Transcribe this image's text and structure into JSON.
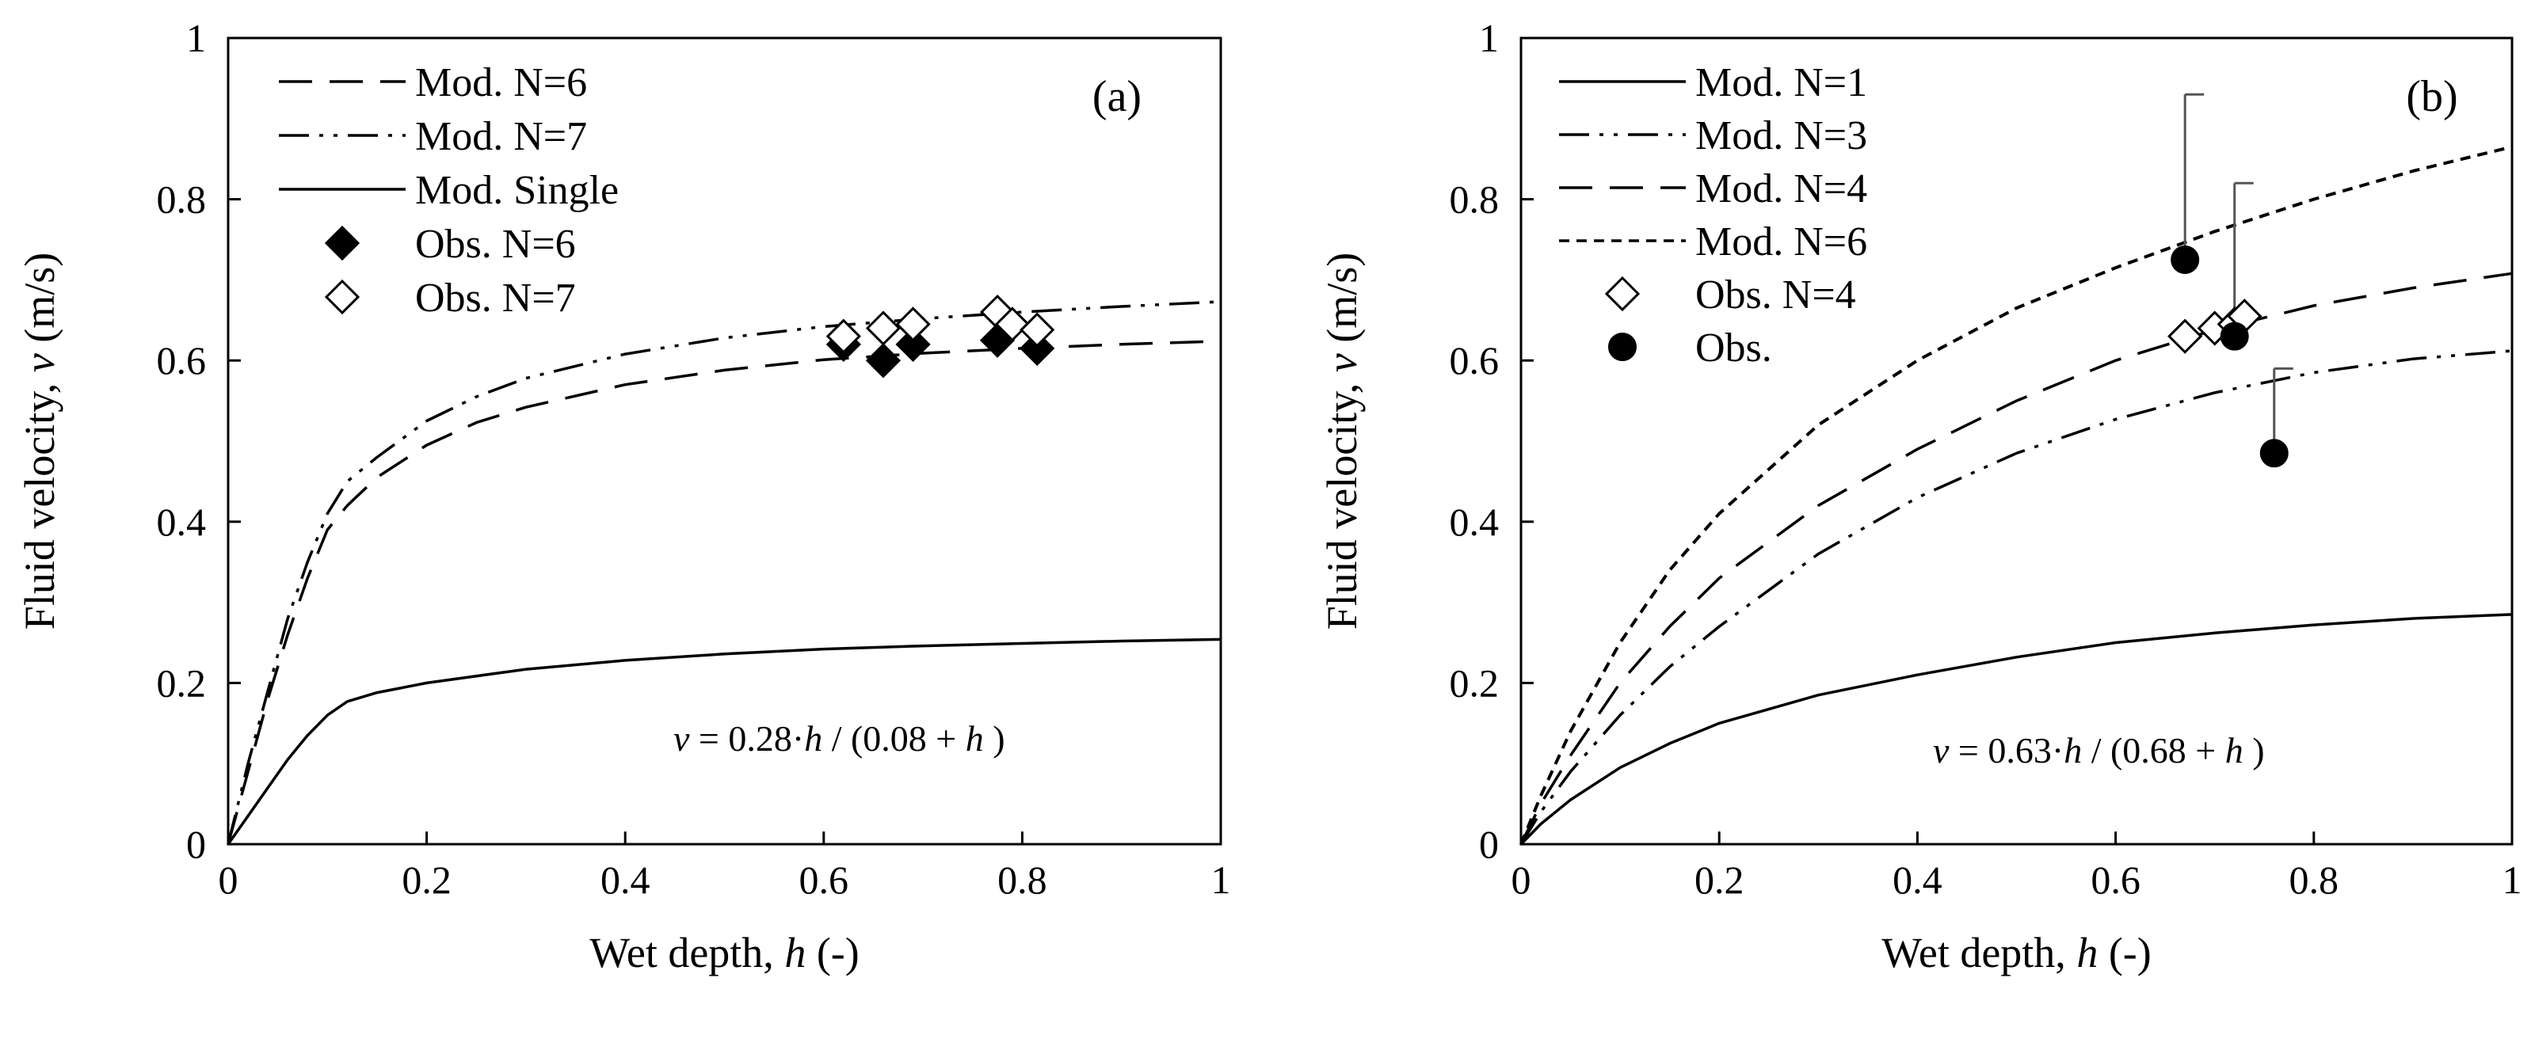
{
  "chart_data": [
    {
      "type": "line",
      "panel_label": "(a)",
      "xlabel_prefix": "Wet depth, ",
      "xlabel_var": "h",
      "xlabel_suffix": " (-)",
      "ylabel_prefix": "Fluid velocity, ",
      "ylabel_var": "v",
      "ylabel_suffix": " (m/s)",
      "xlim": [
        0,
        1
      ],
      "ylim": [
        0,
        1
      ],
      "xticks": [
        0,
        0.2,
        0.4,
        0.6,
        0.8,
        1
      ],
      "xtick_labels": [
        "0",
        "0.2",
        "0.4",
        "0.6",
        "0.8",
        "1"
      ],
      "yticks": [
        0,
        0.2,
        0.4,
        0.6,
        0.8,
        1
      ],
      "ytick_labels": [
        "0",
        "0.2",
        "0.4",
        "0.6",
        "0.8",
        "1"
      ],
      "grid": false,
      "legend_position": "top-left",
      "equation": {
        "v": "v",
        "eq": " = 0.28·",
        "h1": "h",
        "mid": " / (0.08 + ",
        "h2": "h",
        "end": " )"
      },
      "series": [
        {
          "name": "Mod. N=6",
          "style": "dashed",
          "x": [
            0,
            0.02,
            0.04,
            0.06,
            0.08,
            0.1,
            0.12,
            0.15,
            0.2,
            0.25,
            0.3,
            0.4,
            0.5,
            0.6,
            0.7,
            0.8,
            0.9,
            1.0
          ],
          "y": [
            0,
            0.09,
            0.18,
            0.26,
            0.33,
            0.39,
            0.42,
            0.455,
            0.495,
            0.523,
            0.542,
            0.57,
            0.588,
            0.601,
            0.609,
            0.615,
            0.62,
            0.624
          ]
        },
        {
          "name": "Mod. N=7",
          "style": "dash-dot-dot",
          "x": [
            0,
            0.02,
            0.04,
            0.06,
            0.08,
            0.1,
            0.12,
            0.15,
            0.2,
            0.25,
            0.3,
            0.4,
            0.5,
            0.6,
            0.7,
            0.8,
            0.9,
            1.0
          ],
          "y": [
            0,
            0.1,
            0.19,
            0.28,
            0.35,
            0.41,
            0.45,
            0.48,
            0.525,
            0.555,
            0.578,
            0.608,
            0.628,
            0.642,
            0.652,
            0.66,
            0.667,
            0.673
          ]
        },
        {
          "name": "Mod. Single",
          "style": "solid",
          "x": [
            0,
            0.02,
            0.04,
            0.06,
            0.08,
            0.1,
            0.12,
            0.15,
            0.2,
            0.3,
            0.4,
            0.5,
            0.6,
            0.7,
            0.8,
            0.9,
            1.0
          ],
          "y": [
            0,
            0.035,
            0.07,
            0.105,
            0.135,
            0.16,
            0.177,
            0.188,
            0.2,
            0.217,
            0.228,
            0.236,
            0.242,
            0.246,
            0.249,
            0.252,
            0.254
          ]
        }
      ],
      "markers": [
        {
          "name": "Obs. N=6",
          "marker": "filled-diamond",
          "x": [
            0.62,
            0.66,
            0.69,
            0.775,
            0.815
          ],
          "y": [
            0.62,
            0.6,
            0.62,
            0.625,
            0.615
          ]
        },
        {
          "name": "Obs. N=7",
          "marker": "open-diamond",
          "x": [
            0.62,
            0.66,
            0.69,
            0.775,
            0.79,
            0.815
          ],
          "y": [
            0.63,
            0.64,
            0.645,
            0.66,
            0.645,
            0.638
          ]
        }
      ]
    },
    {
      "type": "line",
      "panel_label": "(b)",
      "xlabel_prefix": "Wet depth, ",
      "xlabel_var": "h",
      "xlabel_suffix": " (-)",
      "ylabel_prefix": "Fluid velocity, ",
      "ylabel_var": "v",
      "ylabel_suffix": " (m/s)",
      "xlim": [
        0,
        1
      ],
      "ylim": [
        0,
        1
      ],
      "xticks": [
        0,
        0.2,
        0.4,
        0.6,
        0.8,
        1
      ],
      "xtick_labels": [
        "0",
        "0.2",
        "0.4",
        "0.6",
        "0.8",
        "1"
      ],
      "yticks": [
        0,
        0.2,
        0.4,
        0.6,
        0.8,
        1
      ],
      "ytick_labels": [
        "0",
        "0.2",
        "0.4",
        "0.6",
        "0.8",
        "1"
      ],
      "grid": false,
      "legend_position": "top-left",
      "equation": {
        "v": "v",
        "eq": " = 0.63·",
        "h1": "h",
        "mid": " / (0.68 + ",
        "h2": "h",
        "end": " )"
      },
      "series": [
        {
          "name": "Mod. N=1",
          "style": "solid",
          "x": [
            0,
            0.02,
            0.05,
            0.1,
            0.15,
            0.2,
            0.3,
            0.4,
            0.5,
            0.6,
            0.7,
            0.8,
            0.9,
            1.0
          ],
          "y": [
            0,
            0.025,
            0.055,
            0.095,
            0.125,
            0.15,
            0.185,
            0.21,
            0.232,
            0.25,
            0.262,
            0.272,
            0.28,
            0.285
          ]
        },
        {
          "name": "Mod. N=3",
          "style": "dash-dot-dot",
          "x": [
            0,
            0.02,
            0.05,
            0.1,
            0.15,
            0.2,
            0.3,
            0.4,
            0.5,
            0.6,
            0.7,
            0.8,
            0.9,
            1.0
          ],
          "y": [
            0,
            0.04,
            0.09,
            0.16,
            0.22,
            0.27,
            0.36,
            0.43,
            0.485,
            0.527,
            0.56,
            0.585,
            0.602,
            0.612
          ]
        },
        {
          "name": "Mod. N=4",
          "style": "dashed",
          "x": [
            0,
            0.02,
            0.05,
            0.1,
            0.15,
            0.2,
            0.3,
            0.4,
            0.5,
            0.6,
            0.7,
            0.8,
            0.9,
            1.0
          ],
          "y": [
            0,
            0.05,
            0.11,
            0.2,
            0.27,
            0.33,
            0.42,
            0.49,
            0.55,
            0.6,
            0.638,
            0.668,
            0.69,
            0.708
          ]
        },
        {
          "name": "Mod. N=6",
          "style": "dotted",
          "x": [
            0,
            0.02,
            0.05,
            0.1,
            0.15,
            0.2,
            0.3,
            0.4,
            0.5,
            0.6,
            0.7,
            0.8,
            0.9,
            1.0
          ],
          "y": [
            0,
            0.06,
            0.14,
            0.25,
            0.34,
            0.41,
            0.52,
            0.6,
            0.665,
            0.715,
            0.76,
            0.8,
            0.835,
            0.865
          ]
        }
      ],
      "markers": [
        {
          "name": "Obs. N=4",
          "marker": "open-diamond",
          "x": [
            0.67,
            0.7,
            0.72,
            0.73
          ],
          "y": [
            0.63,
            0.64,
            0.645,
            0.655
          ]
        },
        {
          "name": "Obs.",
          "marker": "filled-circle",
          "x": [
            0.67,
            0.72,
            0.76
          ],
          "y": [
            0.725,
            0.63,
            0.485
          ],
          "error_upper": [
            0.93,
            0.82,
            0.59
          ]
        }
      ]
    }
  ]
}
